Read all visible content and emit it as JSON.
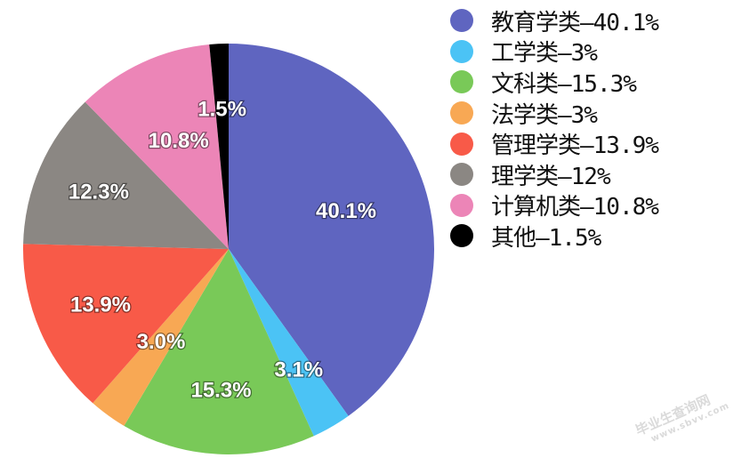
{
  "chart_data": {
    "type": "pie",
    "slices": [
      {
        "name": "教育学类",
        "legend_value": "40.1%",
        "label": "40.1%",
        "value": 40.1,
        "color": "#5f65c0"
      },
      {
        "name": "工学类",
        "legend_value": "3%",
        "label": "3.1%",
        "value": 3.1,
        "color": "#4bc3f5"
      },
      {
        "name": "文科类",
        "legend_value": "15.3%",
        "label": "15.3%",
        "value": 15.3,
        "color": "#79c958"
      },
      {
        "name": "法学类",
        "legend_value": "3%",
        "label": "3.0%",
        "value": 3.0,
        "color": "#f8a854"
      },
      {
        "name": "管理学类",
        "legend_value": "13.9%",
        "label": "13.9%",
        "value": 13.9,
        "color": "#f85a48"
      },
      {
        "name": "理学类",
        "legend_value": "12%",
        "label": "12.3%",
        "value": 12.3,
        "color": "#8b8783"
      },
      {
        "name": "计算机类",
        "legend_value": "10.8%",
        "label": "10.8%",
        "value": 10.8,
        "color": "#ec85b7"
      },
      {
        "name": "其他",
        "legend_value": "1.5%",
        "label": "1.5%",
        "value": 1.5,
        "color": "#000000"
      }
    ],
    "legend_separator": "—",
    "legend_position": "right"
  },
  "watermark": {
    "line1": "毕业生查询网",
    "line2": "www.sbvv.com"
  }
}
